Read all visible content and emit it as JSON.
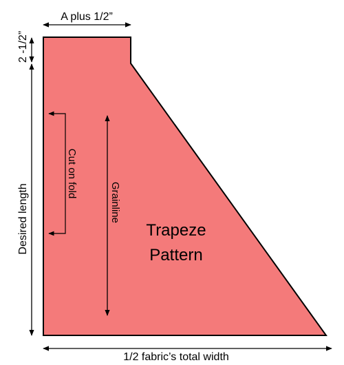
{
  "shape": {
    "fill_color": "#F47A7A",
    "stroke_color": "#000000"
  },
  "labels": {
    "top_width": "A plus 1/2”",
    "small_height": "2 -1/2”",
    "desired_length": "Desired length",
    "bottom_width": "1/2 fabric’s total width",
    "cut_on_fold": "Cut on fold",
    "grainline": "Grainline",
    "title_line1": "Trapeze",
    "title_line2": "Pattern"
  }
}
